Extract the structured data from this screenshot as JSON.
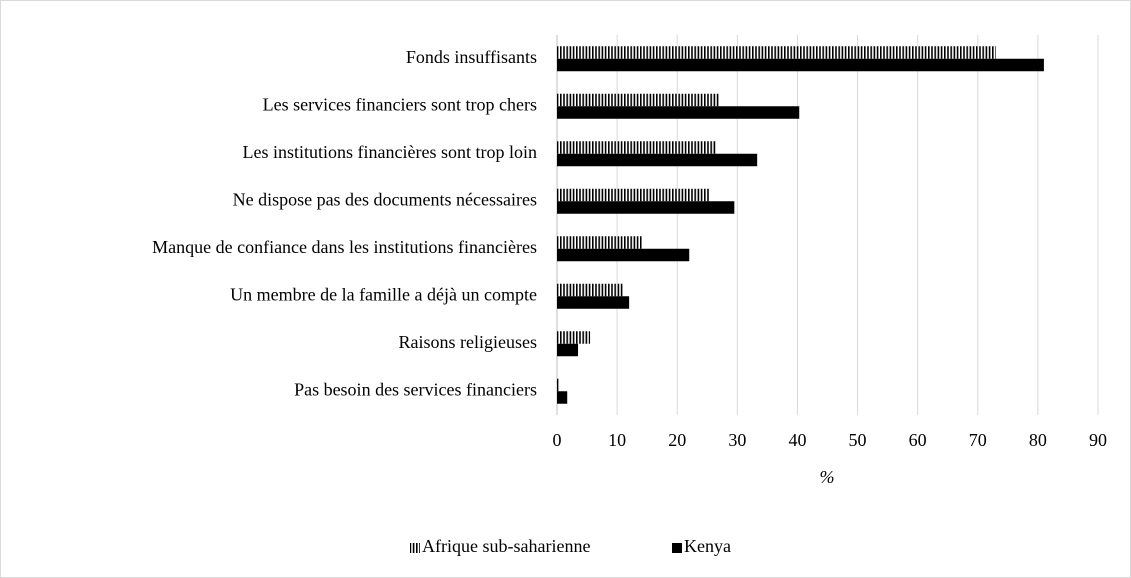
{
  "chart_data": {
    "type": "hbar",
    "categories": [
      "Fonds insuffisants",
      "Les services financiers sont trop chers",
      "Les institutions financières sont trop loin",
      "Ne dispose pas des documents nécessaires",
      "Manque de confiance dans les institutions financières",
      "Un membre de la famille a déjà un compte",
      "Raisons religieuses",
      "Pas besoin des services financiers"
    ],
    "series": [
      {
        "name": "Afrique sub-saharienne",
        "color": "#000000",
        "pattern": "vertical-lines",
        "values": [
          73,
          27,
          26.5,
          25.3,
          14.1,
          11,
          5.5,
          0.5
        ]
      },
      {
        "name": "Kenya",
        "color": "#000000",
        "values": [
          81,
          40.3,
          33.3,
          29.5,
          22,
          12,
          3.5,
          1.7
        ]
      }
    ],
    "xlabel": "%",
    "xlim": [
      0,
      90
    ],
    "xticks": [
      0,
      10,
      20,
      30,
      40,
      50,
      60,
      70,
      80,
      90
    ],
    "grid": true,
    "legend": "bottom"
  }
}
